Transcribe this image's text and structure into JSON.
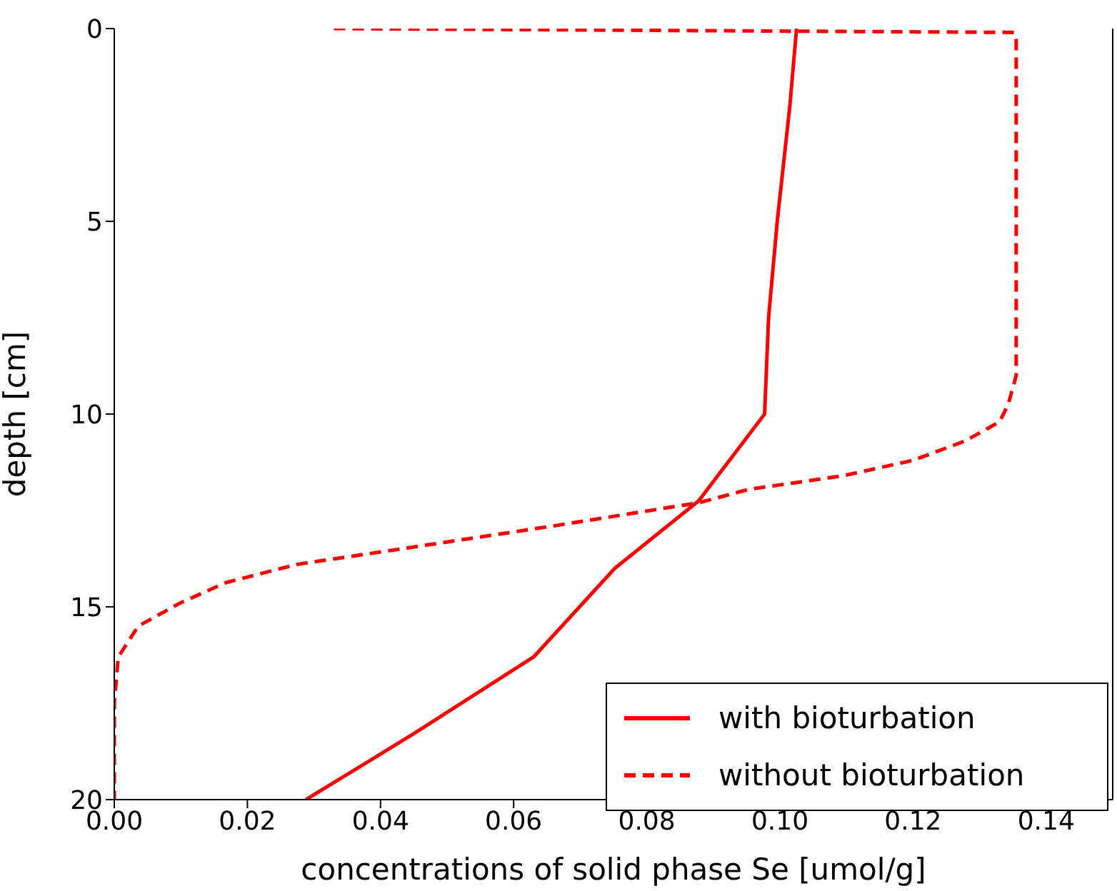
{
  "chart_data": {
    "type": "line",
    "xlabel": "concentrations of solid phase Se [umol/g]",
    "ylabel": "depth [cm]",
    "xlim": [
      0,
      0.15
    ],
    "xticks": [
      {
        "value": 0,
        "label": "0.00"
      },
      {
        "value": 0.02,
        "label": "0.02"
      },
      {
        "value": 0.04,
        "label": "0.04"
      },
      {
        "value": 0.06,
        "label": "0.06"
      },
      {
        "value": 0.08,
        "label": "0.08"
      },
      {
        "value": 0.1,
        "label": "0.10"
      },
      {
        "value": 0.12,
        "label": "0.12"
      },
      {
        "value": 0.14,
        "label": "0.14"
      }
    ],
    "ylim": [
      20,
      0
    ],
    "yticks": [
      0,
      5,
      10,
      15,
      20
    ],
    "legend": "bottom right",
    "marker": "none",
    "series": [
      {
        "name": "with bioturbation",
        "color": "#ff0000",
        "line_style": "solid",
        "x": [
          0.1025,
          0.1015,
          0.0996,
          0.0983,
          0.0977,
          0.0878,
          0.0752,
          0.063,
          0.0449,
          0.0288
        ],
        "values": [
          0,
          2,
          5,
          7.5,
          10,
          12.25,
          14,
          16.3,
          18.3,
          20
        ]
      },
      {
        "name": "without bioturbation",
        "color": "#ff0000",
        "line_style": "dashed",
        "x": [
          0.033,
          0.1352,
          0.1355,
          0.1355,
          0.1343,
          0.133,
          0.1278,
          0.12,
          0.1095,
          0.0954,
          0.0878,
          0.066,
          0.0449,
          0.0274,
          0.0168,
          0.0099,
          0.0036,
          0.0006,
          0,
          0
        ],
        "values": [
          0,
          0.1,
          0.3,
          9,
          9.75,
          10.2,
          10.7,
          11.2,
          11.6,
          11.95,
          12.3,
          12.9,
          13.45,
          13.9,
          14.37,
          14.9,
          15.5,
          16.3,
          17.5,
          20
        ]
      }
    ]
  }
}
